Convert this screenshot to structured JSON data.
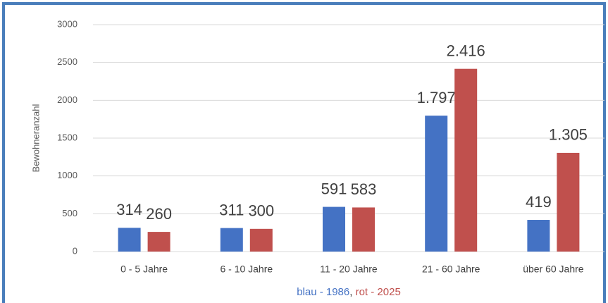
{
  "chart_data": {
    "type": "bar",
    "y_label": "Bewohneranzahl",
    "categories": [
      "0 - 5 Jahre",
      "6 - 10 Jahre",
      "11 - 20 Jahre",
      "21 - 60 Jahre",
      "über 60 Jahre"
    ],
    "series": [
      {
        "name": "blau - 1986",
        "color": "#4472c4",
        "values": [
          314,
          311,
          591,
          1797,
          419
        ],
        "value_labels": [
          "314",
          "311",
          "591",
          "1.797",
          "419"
        ]
      },
      {
        "name": "rot - 2025",
        "color": "#c0504d",
        "values": [
          260,
          300,
          583,
          2416,
          1305
        ],
        "value_labels": [
          "260",
          "300",
          "583",
          "2.416",
          "1.305"
        ]
      }
    ],
    "legend_separator": ", ",
    "ylim": [
      0,
      3000
    ],
    "yticks": [
      0,
      500,
      1000,
      1500,
      2000,
      2500,
      3000
    ],
    "grid": true
  }
}
